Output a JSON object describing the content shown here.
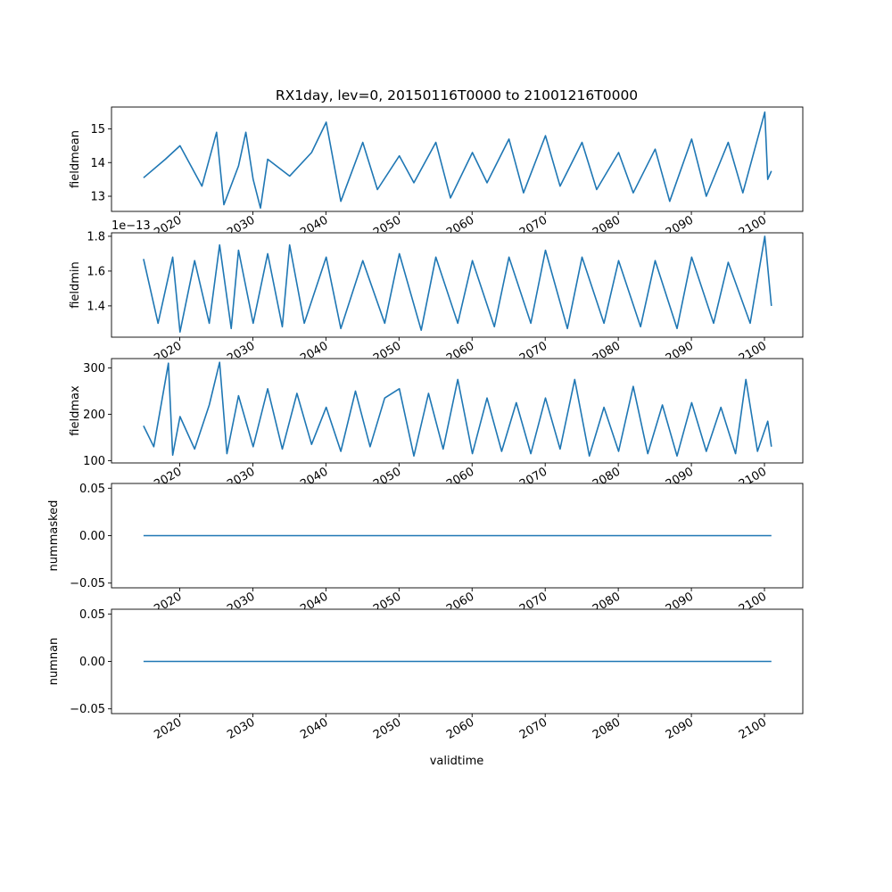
{
  "chart_data": {
    "type": "line",
    "title": "RX1day, lev=0, 20150116T0000 to 21001216T0000",
    "xlabel": "validtime",
    "x_range": [
      "2015-01-16",
      "2100-12-16"
    ],
    "xlim": [
      "2010-09-01",
      "2105-04-01"
    ],
    "x_ticks": [
      "2020",
      "2030",
      "2040",
      "2050",
      "2060",
      "2070",
      "2080",
      "2090",
      "2100"
    ],
    "x_tick_labels_rotated": true,
    "series_color": "#1f77b4",
    "grid": false,
    "panels": [
      {
        "ylabel": "fieldmean",
        "ylim": [
          12.55,
          15.65
        ],
        "y_ticks": [
          "13",
          "14",
          "15"
        ],
        "scale_note": "",
        "series": [
          {
            "x": [
              "2015-01-16",
              "2018-01-16",
              "2020-01-16",
              "2023-01-16",
              "2025-01-16",
              "2026-01-16",
              "2028-01-16",
              "2029-01-16",
              "2030-01-16",
              "2031-01-16",
              "2032-01-16",
              "2035-01-16",
              "2038-01-16",
              "2040-01-16",
              "2042-01-16",
              "2045-01-16",
              "2047-01-16",
              "2050-01-16",
              "2052-01-16",
              "2055-01-16",
              "2057-01-16",
              "2060-01-16",
              "2062-01-16",
              "2065-01-16",
              "2067-01-16",
              "2070-01-16",
              "2072-01-16",
              "2075-01-16",
              "2077-01-16",
              "2080-01-16",
              "2082-01-16",
              "2085-01-16",
              "2087-01-16",
              "2090-01-16",
              "2092-01-16",
              "2095-01-16",
              "2097-01-16",
              "2100-01-16",
              "2100-06-16",
              "2100-12-16"
            ],
            "y": [
              13.55,
              14.1,
              14.5,
              13.3,
              14.9,
              12.75,
              13.9,
              14.9,
              13.5,
              12.65,
              14.1,
              13.6,
              14.3,
              15.2,
              12.85,
              14.6,
              13.2,
              14.2,
              13.4,
              14.6,
              12.95,
              14.3,
              13.4,
              14.7,
              13.1,
              14.8,
              13.3,
              14.6,
              13.2,
              14.3,
              13.1,
              14.4,
              12.85,
              14.7,
              13.0,
              14.6,
              13.1,
              15.5,
              13.5,
              13.75
            ]
          }
        ]
      },
      {
        "ylabel": "fieldmin",
        "ylim": [
          1.22e-13,
          1.82e-13
        ],
        "y_ticks": [
          "1.4",
          "1.6",
          "1.8"
        ],
        "scale_note": "1e−13",
        "series": [
          {
            "x": [
              "2015-01-16",
              "2017-01-16",
              "2019-01-16",
              "2020-01-16",
              "2022-01-16",
              "2024-01-16",
              "2025-06-16",
              "2027-01-16",
              "2028-01-16",
              "2030-01-16",
              "2032-01-16",
              "2034-01-16",
              "2035-01-16",
              "2037-01-16",
              "2040-01-16",
              "2042-01-16",
              "2045-01-16",
              "2048-01-16",
              "2050-01-16",
              "2053-01-16",
              "2055-01-16",
              "2058-01-16",
              "2060-01-16",
              "2063-01-16",
              "2065-01-16",
              "2068-01-16",
              "2070-01-16",
              "2073-01-16",
              "2075-01-16",
              "2078-01-16",
              "2080-01-16",
              "2083-01-16",
              "2085-01-16",
              "2088-01-16",
              "2090-01-16",
              "2093-01-16",
              "2095-01-16",
              "2098-01-16",
              "2100-01-16",
              "2100-12-16"
            ],
            "y": [
              1.67e-13,
              1.3e-13,
              1.68e-13,
              1.25e-13,
              1.66e-13,
              1.3e-13,
              1.75e-13,
              1.27e-13,
              1.72e-13,
              1.3e-13,
              1.7e-13,
              1.28e-13,
              1.75e-13,
              1.3e-13,
              1.68e-13,
              1.27e-13,
              1.66e-13,
              1.3e-13,
              1.7e-13,
              1.26e-13,
              1.68e-13,
              1.3e-13,
              1.66e-13,
              1.28e-13,
              1.68e-13,
              1.3e-13,
              1.72e-13,
              1.27e-13,
              1.68e-13,
              1.3e-13,
              1.66e-13,
              1.28e-13,
              1.66e-13,
              1.27e-13,
              1.68e-13,
              1.3e-13,
              1.65e-13,
              1.3e-13,
              1.8e-13,
              1.4e-13
            ]
          }
        ]
      },
      {
        "ylabel": "fieldmax",
        "ylim": [
          95,
          320
        ],
        "y_ticks": [
          "100",
          "200",
          "300"
        ],
        "scale_note": "",
        "series": [
          {
            "x": [
              "2015-01-16",
              "2016-06-16",
              "2018-06-16",
              "2019-01-16",
              "2020-01-16",
              "2022-01-16",
              "2024-01-16",
              "2025-06-16",
              "2026-06-16",
              "2028-01-16",
              "2030-01-16",
              "2032-01-16",
              "2034-01-16",
              "2036-01-16",
              "2038-01-16",
              "2040-01-16",
              "2042-01-16",
              "2044-01-16",
              "2046-01-16",
              "2048-01-16",
              "2050-01-16",
              "2052-01-16",
              "2054-01-16",
              "2056-01-16",
              "2058-01-16",
              "2060-01-16",
              "2062-01-16",
              "2064-01-16",
              "2066-01-16",
              "2068-01-16",
              "2070-01-16",
              "2072-01-16",
              "2074-01-16",
              "2076-01-16",
              "2078-01-16",
              "2080-01-16",
              "2082-01-16",
              "2084-01-16",
              "2086-01-16",
              "2088-01-16",
              "2090-01-16",
              "2092-01-16",
              "2094-01-16",
              "2096-01-16",
              "2097-06-16",
              "2099-01-16",
              "2100-06-16",
              "2100-12-16"
            ],
            "y": [
              175,
              130,
              310,
              112,
              195,
              125,
              220,
              312,
              115,
              240,
              130,
              255,
              125,
              245,
              135,
              215,
              120,
              250,
              130,
              235,
              255,
              110,
              245,
              125,
              275,
              115,
              235,
              120,
              225,
              115,
              235,
              125,
              275,
              110,
              215,
              120,
              260,
              115,
              220,
              110,
              225,
              120,
              215,
              115,
              275,
              120,
              185,
              130
            ]
          }
        ]
      },
      {
        "ylabel": "nummasked",
        "ylim": [
          -0.055,
          0.055
        ],
        "y_ticks": [
          "−0.05",
          "0.00",
          "0.05"
        ],
        "scale_note": "",
        "series": [
          {
            "x": [
              "2015-01-16",
              "2100-12-16"
            ],
            "y": [
              0,
              0
            ]
          }
        ]
      },
      {
        "ylabel": "numnan",
        "ylim": [
          -0.055,
          0.055
        ],
        "y_ticks": [
          "−0.05",
          "0.00",
          "0.05"
        ],
        "scale_note": "",
        "series": [
          {
            "x": [
              "2015-01-16",
              "2100-12-16"
            ],
            "y": [
              0,
              0
            ]
          }
        ]
      }
    ]
  }
}
